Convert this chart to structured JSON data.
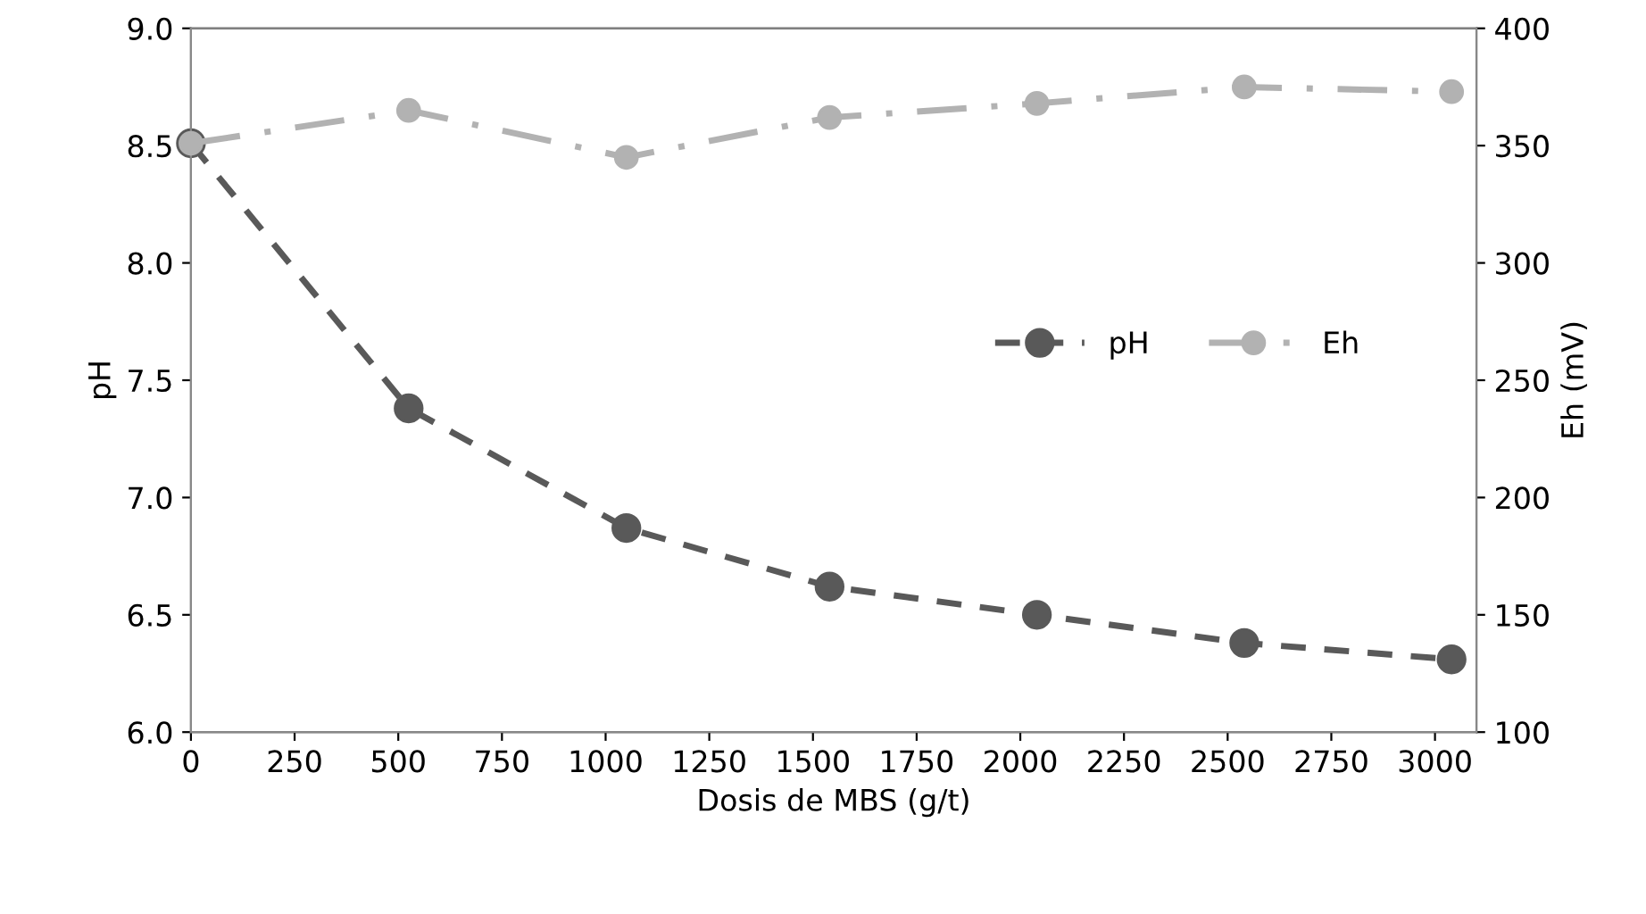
{
  "chart_data": {
    "type": "line",
    "xlabel": "Dosis de MBS (g/t)",
    "ylabel": "pH",
    "y2label": "Eh (mV)",
    "x": [
      0,
      525,
      1050,
      1540,
      2040,
      2540,
      3040
    ],
    "series": [
      {
        "name": "pH",
        "color": "#595959",
        "values": [
          8.51,
          7.38,
          6.87,
          6.62,
          6.5,
          6.38,
          6.31
        ],
        "line_style": "dashed",
        "marker": "circle"
      },
      {
        "name": "Eh",
        "color": "#b2b2b2",
        "axis": "y2",
        "values": [
          351,
          365,
          345,
          362,
          368,
          375,
          373
        ],
        "line_style": "dashdot",
        "marker": "circle"
      }
    ],
    "xlim": [
      0,
      3100
    ],
    "xticks": [
      0,
      250,
      500,
      750,
      1000,
      1250,
      1500,
      1750,
      2000,
      2250,
      2500,
      2750,
      3000
    ],
    "ylim": [
      6,
      9
    ],
    "yticks": [
      {
        "value": 6,
        "label": "6.0"
      },
      {
        "value": 6.5,
        "label": "6.5"
      },
      {
        "value": 7,
        "label": "7.0"
      },
      {
        "value": 7.5,
        "label": "7.5"
      },
      {
        "value": 8,
        "label": "8.0"
      },
      {
        "value": 8.5,
        "label": "8.5"
      },
      {
        "value": 9,
        "label": "9.0"
      }
    ],
    "y2lim": [
      100,
      400
    ],
    "y2ticks": [
      100,
      150,
      200,
      250,
      300,
      350,
      400
    ],
    "grid": false,
    "legend": "right"
  }
}
